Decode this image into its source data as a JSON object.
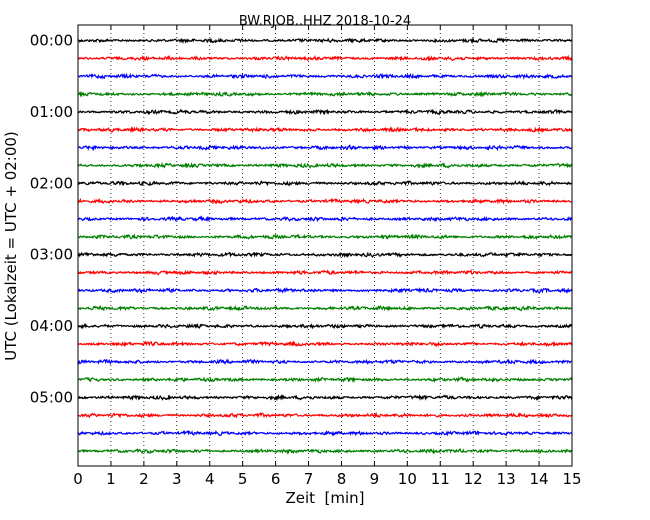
{
  "chart_data": {
    "type": "line",
    "title": "BW.RJOB..HHZ 2018-10-24",
    "xlabel": "Zeit  [min]",
    "ylabel": "UTC (Lokalzeit = UTC + 02:00)",
    "xlim": [
      0,
      15
    ],
    "x_ticks": [
      0,
      1,
      2,
      3,
      4,
      5,
      6,
      7,
      8,
      9,
      10,
      11,
      12,
      13,
      14,
      15
    ],
    "x_tick_labels": [
      "0",
      "1",
      "2",
      "3",
      "4",
      "5",
      "6",
      "7",
      "8",
      "9",
      "10",
      "11",
      "12",
      "13",
      "14",
      "15"
    ],
    "y_tick_labels": [
      "00:00",
      "01:00",
      "02:00",
      "03:00",
      "04:00",
      "05:00"
    ],
    "grid": "vertical dotted",
    "trace_colors": [
      "#000000",
      "#ff0000",
      "#0000ff",
      "#008000"
    ],
    "series": [
      {
        "start": "00:00",
        "color": "#000000"
      },
      {
        "start": "00:15",
        "color": "#ff0000"
      },
      {
        "start": "00:30",
        "color": "#0000ff"
      },
      {
        "start": "00:45",
        "color": "#008000"
      },
      {
        "start": "01:00",
        "color": "#000000"
      },
      {
        "start": "01:15",
        "color": "#ff0000"
      },
      {
        "start": "01:30",
        "color": "#0000ff"
      },
      {
        "start": "01:45",
        "color": "#008000"
      },
      {
        "start": "02:00",
        "color": "#000000"
      },
      {
        "start": "02:15",
        "color": "#ff0000"
      },
      {
        "start": "02:30",
        "color": "#0000ff"
      },
      {
        "start": "02:45",
        "color": "#008000"
      },
      {
        "start": "03:00",
        "color": "#000000"
      },
      {
        "start": "03:15",
        "color": "#ff0000"
      },
      {
        "start": "03:30",
        "color": "#0000ff"
      },
      {
        "start": "03:45",
        "color": "#008000"
      },
      {
        "start": "04:00",
        "color": "#000000"
      },
      {
        "start": "04:15",
        "color": "#ff0000"
      },
      {
        "start": "04:30",
        "color": "#0000ff"
      },
      {
        "start": "04:45",
        "color": "#008000"
      },
      {
        "start": "05:00",
        "color": "#000000"
      },
      {
        "start": "05:15",
        "color": "#ff0000"
      },
      {
        "start": "05:30",
        "color": "#0000ff"
      },
      {
        "start": "05:45",
        "color": "#008000"
      }
    ]
  }
}
